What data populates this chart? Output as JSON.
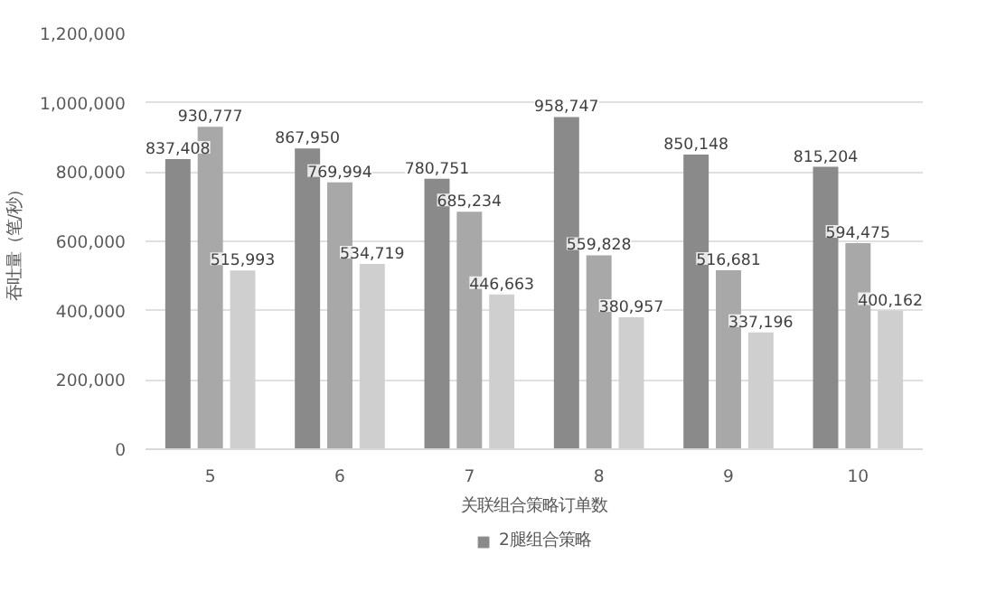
{
  "chart_data": {
    "type": "bar",
    "xlabel": "关联组合策略订单数",
    "ylabel": "吞吐量（笔/秒）",
    "categories": [
      "5",
      "6",
      "7",
      "8",
      "9",
      "10"
    ],
    "series": [
      {
        "name": "2腿组合策略",
        "color": "#8a8a8a",
        "values": [
          837408,
          867950,
          780751,
          958747,
          850148,
          815204
        ],
        "value_labels": [
          "837,408",
          "867,950",
          "780,751",
          "958,747",
          "850,148",
          "815,204"
        ]
      },
      {
        "color": "#a8a8a8",
        "values": [
          930777,
          769994,
          685234,
          559828,
          516681,
          594475
        ],
        "value_labels": [
          "930,777",
          "769,994",
          "685,234",
          "559,828",
          "516,681",
          "594,475"
        ]
      },
      {
        "color": "#cfcfcf",
        "values": [
          515993,
          534719,
          446663,
          380957,
          337196,
          400162
        ],
        "value_labels": [
          "515,993",
          "534,719",
          "446,663",
          "380,957",
          "337,196",
          "400,162"
        ]
      }
    ],
    "ylim": [
      0,
      1200000
    ],
    "yticks": [
      {
        "value": 0,
        "label": "0"
      },
      {
        "value": 200000,
        "label": "200,000"
      },
      {
        "value": 400000,
        "label": "400,000"
      },
      {
        "value": 600000,
        "label": "600,000"
      },
      {
        "value": 800000,
        "label": "800,000"
      },
      {
        "value": 1000000,
        "label": "1,000,000"
      },
      {
        "value": 1200000,
        "label": "1,200,000"
      }
    ],
    "grid": "y",
    "legend": "bottom"
  }
}
